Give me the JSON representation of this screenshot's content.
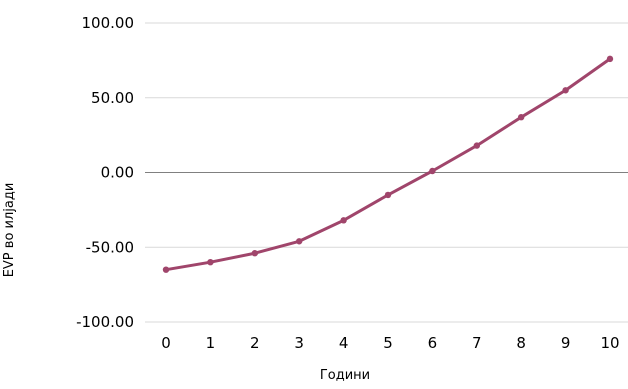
{
  "chart_data": {
    "type": "line",
    "title": "",
    "xlabel": "Години",
    "ylabel": "EVP во илјади",
    "x": [
      0,
      1,
      2,
      3,
      4,
      5,
      6,
      7,
      8,
      9,
      10
    ],
    "x_tick_labels": [
      "0",
      "1",
      "2",
      "3",
      "4",
      "5",
      "6",
      "7",
      "8",
      "9",
      "10"
    ],
    "series": [
      {
        "values": [
          -65,
          -60,
          -54,
          -46,
          -32,
          -15,
          1,
          18,
          37,
          55,
          76
        ],
        "color": "#a0456b"
      }
    ],
    "ylim": [
      -100,
      100
    ],
    "y_ticks": [
      100,
      50,
      0,
      -50,
      -100
    ],
    "y_tick_labels": [
      "100.00",
      "50.00",
      "0.00",
      "-50.00",
      "-100.00"
    ],
    "grid": true,
    "gridline_color": "#d9d9d9",
    "zero_line_color": "#808080",
    "legend": "none"
  }
}
